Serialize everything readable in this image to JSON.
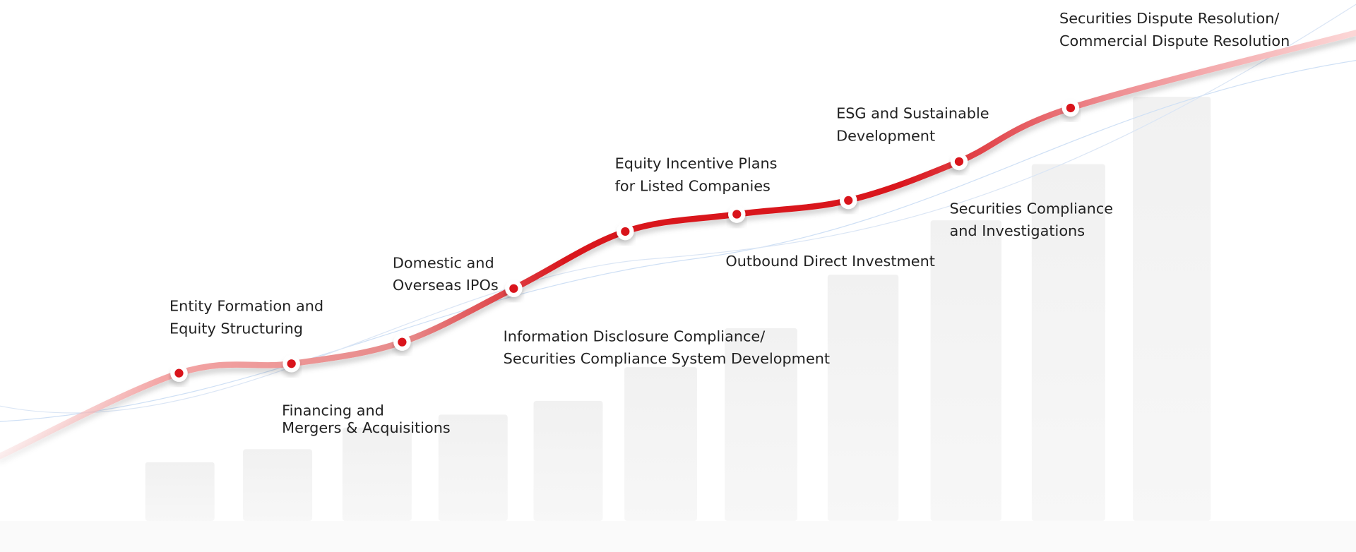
{
  "milestones": [
    {
      "lines": [
        "Entity Formation and",
        "Equity Structuring"
      ]
    },
    {
      "lines": [
        "Financing and",
        "Mergers & Acquisitions"
      ]
    },
    {
      "lines": [
        "Domestic and",
        "Overseas IPOs"
      ]
    },
    {
      "lines": [
        "Information Disclosure Compliance/",
        "Securities Compliance System Development"
      ]
    },
    {
      "lines": [
        "Equity Incentive Plans",
        "for Listed Companies"
      ]
    },
    {
      "lines": [
        "Outbound Direct Investment"
      ]
    },
    {
      "lines": [
        "ESG and Sustainable",
        "Development"
      ]
    },
    {
      "lines": [
        "Securities Compliance",
        "and Investigations"
      ]
    },
    {
      "lines": [
        "Securities Dispute Resolution/",
        "Commercial Dispute Resolution"
      ]
    }
  ]
}
